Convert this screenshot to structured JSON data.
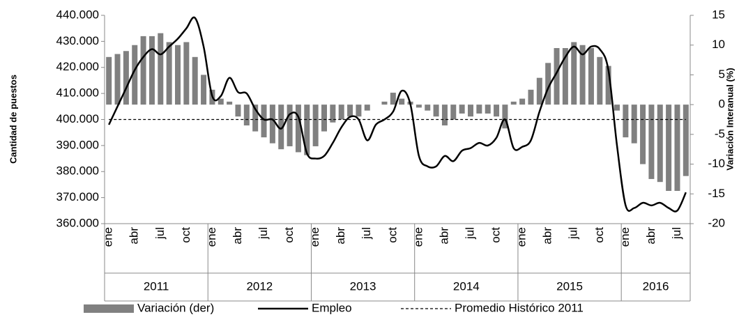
{
  "chart_data": {
    "type": "combo",
    "categories": [
      "ene",
      null,
      null,
      "abr",
      null,
      null,
      "jul",
      null,
      null,
      "oct",
      null,
      null,
      "ene",
      null,
      null,
      "abr",
      null,
      null,
      "jul",
      null,
      null,
      "oct",
      null,
      null,
      "ene",
      null,
      null,
      "abr",
      null,
      null,
      "jul",
      null,
      null,
      "oct",
      null,
      null,
      "ene",
      null,
      null,
      "abr",
      null,
      null,
      "jul",
      null,
      null,
      "oct",
      null,
      null,
      "ene",
      null,
      null,
      "abr",
      null,
      null,
      "jul",
      null,
      null,
      "oct",
      null,
      null,
      "ene",
      null,
      null,
      "abr",
      null,
      null,
      "jul",
      null
    ],
    "years": [
      "2011",
      "2012",
      "2013",
      "2014",
      "2015",
      "2016"
    ],
    "ylabel": "Cantidad de puestos",
    "y2label": "Variación Interanual (%)",
    "ylim": [
      360000,
      440000
    ],
    "yticks": [
      {
        "value": 360000,
        "label": "360.000"
      },
      {
        "value": 370000,
        "label": "370.000"
      },
      {
        "value": 380000,
        "label": "380.000"
      },
      {
        "value": 390000,
        "label": "390.000"
      },
      {
        "value": 400000,
        "label": "400.000"
      },
      {
        "value": 410000,
        "label": "410.000"
      },
      {
        "value": 420000,
        "label": "420.000"
      },
      {
        "value": 430000,
        "label": "430.000"
      },
      {
        "value": 440000,
        "label": "440.000"
      }
    ],
    "y2lim": [
      -20,
      15
    ],
    "y2ticks": [
      -20,
      -15,
      -10,
      -5,
      0,
      5,
      10,
      15
    ],
    "series": [
      {
        "name": "Variación (der)",
        "type": "bar",
        "axis": "y2",
        "color": "#808080",
        "values": [
          8,
          8.5,
          9,
          10,
          11.5,
          11.5,
          12,
          10.5,
          10,
          10.5,
          8,
          5,
          2.5,
          1,
          0.5,
          -2,
          -3.5,
          -4.5,
          -5.5,
          -6.5,
          -7.5,
          -7,
          -8,
          -8.5,
          -7,
          -4.5,
          -3,
          -2.5,
          -2,
          -2,
          -1,
          0,
          0.5,
          2,
          1,
          0.5,
          -0.5,
          -1,
          -2,
          -3.5,
          -2.5,
          -1.5,
          -2,
          -1.5,
          -1.5,
          -2,
          -4,
          0.5,
          1,
          2.5,
          4.5,
          7,
          9.5,
          9.5,
          10.5,
          10,
          9.5,
          8,
          6.5,
          -1,
          -5.5,
          -6.5,
          -10,
          -12.5,
          -13,
          -14.5,
          -14.5,
          -12
        ]
      },
      {
        "name": "Empleo",
        "type": "line",
        "color": "#000000",
        "values": [
          398000,
          405000,
          412000,
          419000,
          424000,
          427000,
          425000,
          428000,
          431000,
          435000,
          439000,
          428000,
          409000,
          409000,
          416000,
          410500,
          410000,
          404000,
          400000,
          400000,
          396500,
          402000,
          401000,
          387000,
          385000,
          386000,
          391000,
          397000,
          401000,
          400000,
          392000,
          398000,
          400000,
          403000,
          411000,
          406000,
          386000,
          382000,
          382000,
          386000,
          384000,
          388000,
          389000,
          391000,
          390000,
          393000,
          400000,
          389000,
          389500,
          392000,
          403000,
          412000,
          418000,
          424000,
          428000,
          425000,
          428000,
          427000,
          419000,
          390000,
          367000,
          366000,
          368000,
          367000,
          368000,
          366000,
          365000,
          372000
        ]
      },
      {
        "name": "Promedio Histórico 2011",
        "type": "line",
        "dashed": true,
        "color": "#000000",
        "values": [
          400000,
          400000,
          400000,
          400000,
          400000,
          400000,
          400000,
          400000,
          400000,
          400000,
          400000,
          400000,
          400000,
          400000,
          400000,
          400000,
          400000,
          400000,
          400000,
          400000,
          400000,
          400000,
          400000,
          400000,
          400000,
          400000,
          400000,
          400000,
          400000,
          400000,
          400000,
          400000,
          400000,
          400000,
          400000,
          400000,
          400000,
          400000,
          400000,
          400000,
          400000,
          400000,
          400000,
          400000,
          400000,
          400000,
          400000,
          400000,
          400000,
          400000,
          400000,
          400000,
          400000,
          400000,
          400000,
          400000,
          400000,
          400000,
          400000,
          400000,
          400000,
          400000,
          400000,
          400000,
          400000,
          400000,
          400000,
          400000
        ]
      }
    ]
  }
}
